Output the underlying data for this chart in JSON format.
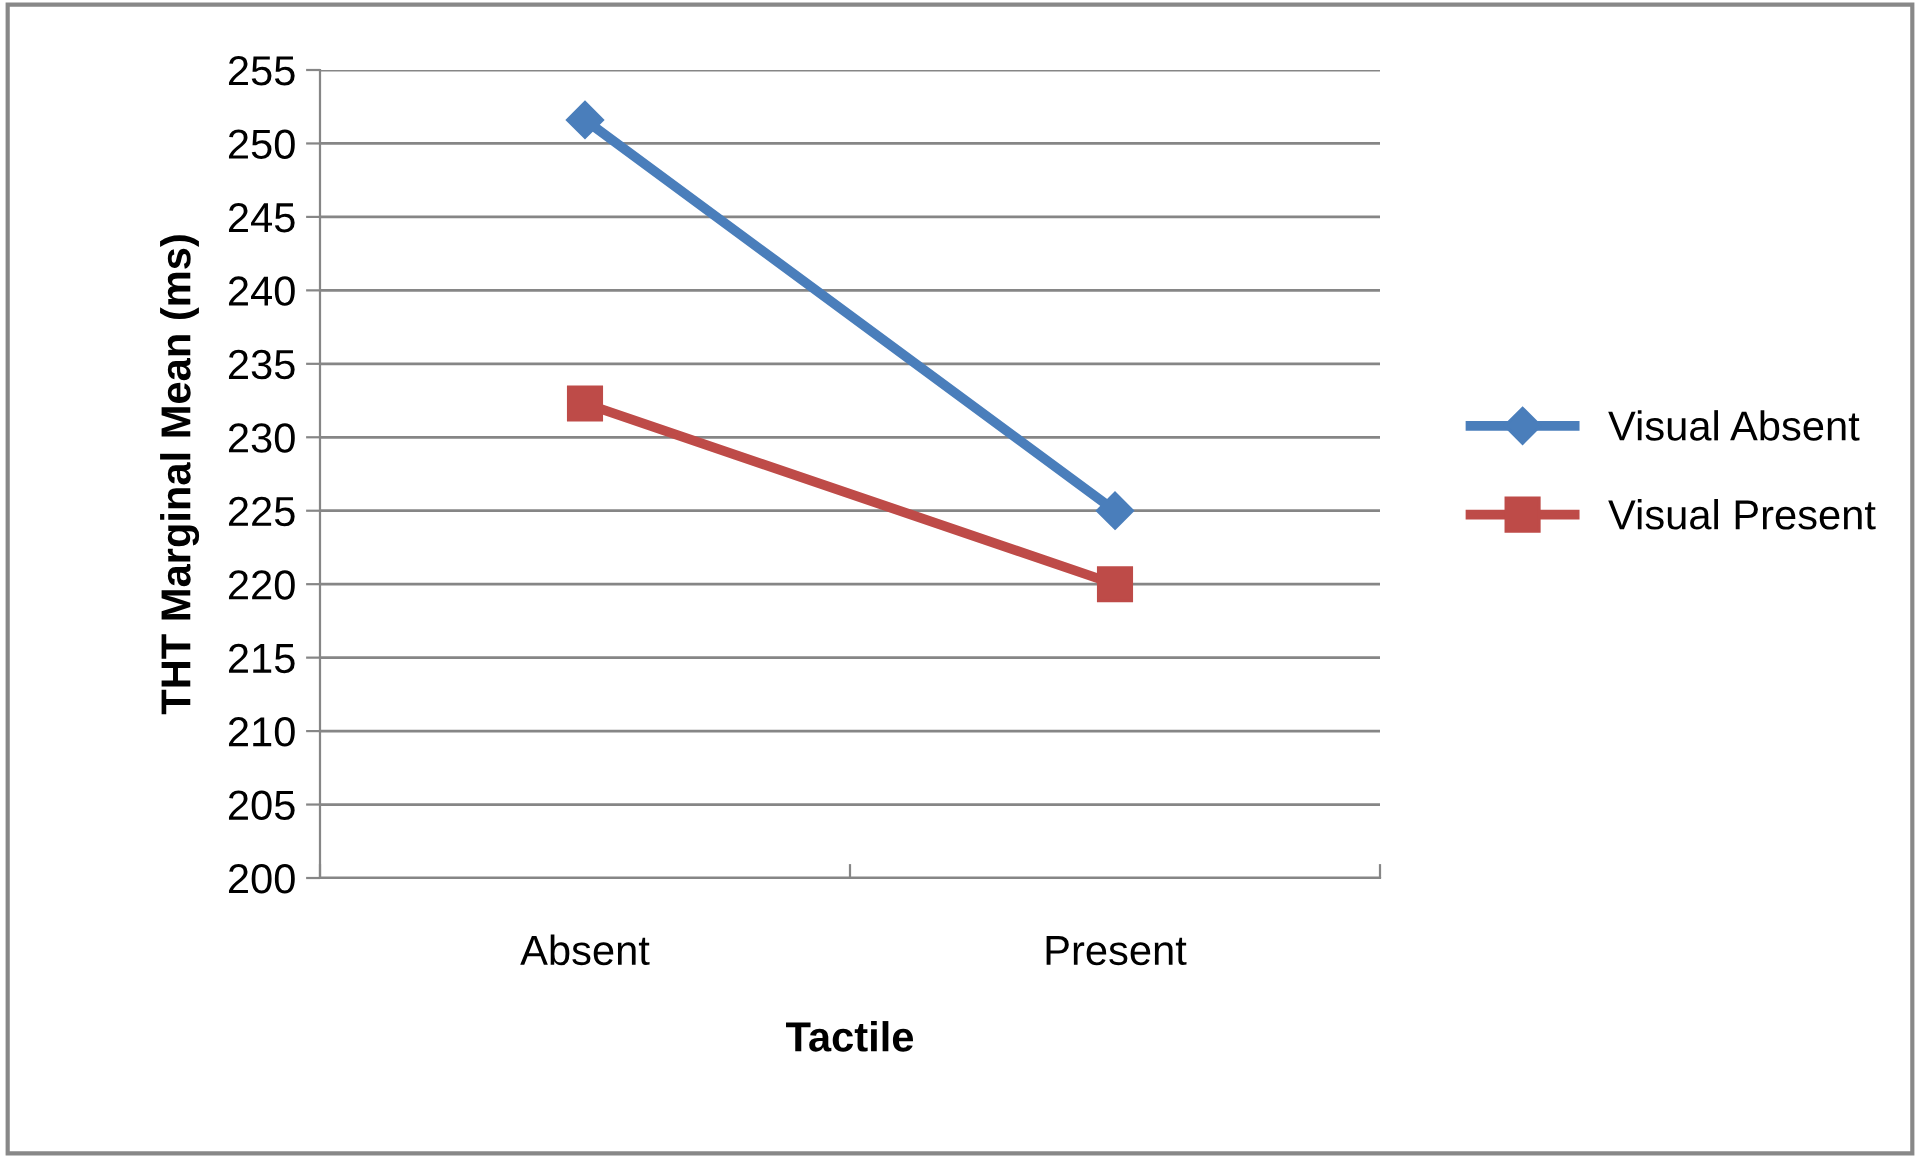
{
  "chart_data": {
    "type": "line",
    "xlabel": "Tactile",
    "ylabel": "THT Marginal Mean (ms)",
    "categories": [
      "Absent",
      "Present"
    ],
    "series": [
      {
        "name": "Visual Absent",
        "color": "#4a7ebb",
        "values": [
          251.6,
          225.0
        ],
        "marker": "diamond"
      },
      {
        "name": "Visual Present",
        "color": "#be4b48",
        "values": [
          232.3,
          220.0
        ],
        "marker": "square"
      }
    ],
    "ylim": [
      200,
      255
    ],
    "yticks": [
      200,
      205,
      210,
      215,
      220,
      225,
      230,
      235,
      240,
      245,
      250,
      255
    ],
    "grid": "y",
    "legend": "right",
    "line_style": "solid"
  }
}
